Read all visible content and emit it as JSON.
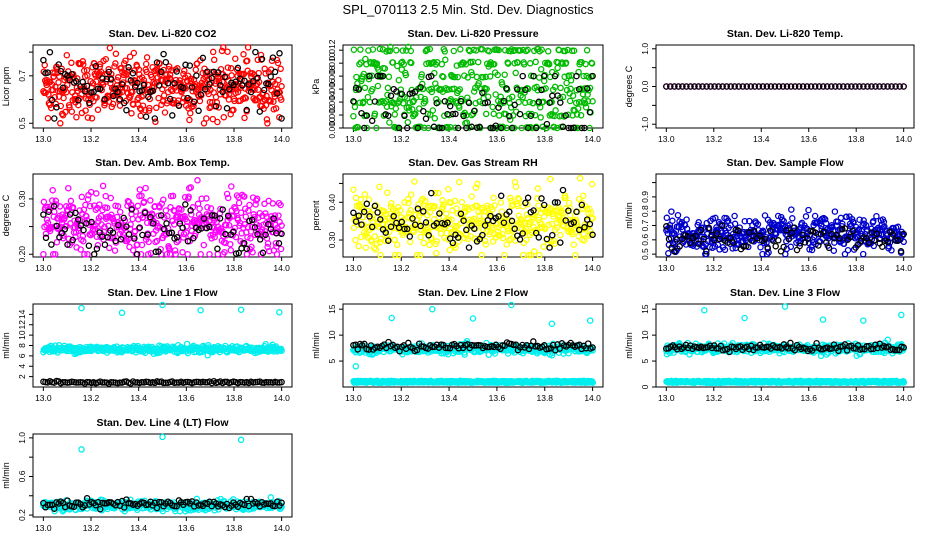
{
  "page": {
    "title": "SPL_070113  2.5 Min. Std. Dev. Diagnostics"
  },
  "chart_data": [
    {
      "type": "scatter",
      "title": "Stan. Dev. Li-820 CO2",
      "xlabel": "",
      "ylabel": "Licor ppm",
      "xlim": [
        13.0,
        14.0
      ],
      "xticks": [
        "13.0",
        "13.2",
        "13.4",
        "13.6",
        "13.8",
        "14.0"
      ],
      "ylim": [
        0.48,
        0.83
      ],
      "yticks": [
        0.5,
        0.6,
        0.7,
        0.8
      ],
      "ytick_labels": [
        "0.5",
        "",
        "0.7",
        ""
      ],
      "series": [
        {
          "name": "primary",
          "color": "#ff0000",
          "n": 520,
          "mean": 0.655,
          "sd": 0.065,
          "min": 0.5,
          "max": 0.82
        },
        {
          "name": "secondary",
          "color": "#000000",
          "n": 110,
          "mean": 0.66,
          "sd": 0.06,
          "min": 0.52,
          "max": 0.8
        }
      ]
    },
    {
      "type": "scatter",
      "title": "Stan. Dev. Li-820 Pressure",
      "xlabel": "",
      "ylabel": "kPa",
      "xlim": [
        13.0,
        14.0
      ],
      "xticks": [
        "13.0",
        "13.2",
        "13.4",
        "13.6",
        "13.8",
        "14.0"
      ],
      "ylim": [
        0.0,
        0.0128
      ],
      "yticks": [
        0.0,
        0.002,
        0.004,
        0.006,
        0.008,
        0.01,
        0.012
      ],
      "ytick_labels": [
        "0.000",
        "0.002",
        "0.004",
        "0.006",
        "0.008",
        "0.010",
        "0.012"
      ],
      "series": [
        {
          "name": "primary",
          "color": "#00bb00",
          "n": 480,
          "levels": [
            0.0,
            0.002,
            0.004,
            0.006,
            0.008,
            0.01,
            0.012
          ],
          "mean": 0.0055,
          "sd": 0.003,
          "min": 0.0,
          "max": 0.0125
        },
        {
          "name": "secondary",
          "color": "#000000",
          "n": 90,
          "levels": [
            0.0,
            0.002,
            0.004,
            0.006,
            0.008
          ],
          "mean": 0.004,
          "sd": 0.003,
          "min": 0.0,
          "max": 0.008
        }
      ]
    },
    {
      "type": "scatter",
      "title": "Stan. Dev. Li-820 Temp.",
      "xlabel": "",
      "ylabel": "degrees C",
      "xlim": [
        13.0,
        14.0
      ],
      "xticks": [
        "13.0",
        "13.2",
        "13.4",
        "13.6",
        "13.8",
        "14.0"
      ],
      "ylim": [
        -1.1,
        1.1
      ],
      "yticks": [
        -1.0,
        -0.5,
        0.0,
        0.5,
        1.0
      ],
      "ytick_labels": [
        "-1.0",
        "",
        "0.0",
        "",
        "1.0"
      ],
      "series": [
        {
          "name": "primary",
          "color": "#ff00ff",
          "n": 60,
          "constant": 0.0
        },
        {
          "name": "secondary",
          "color": "#000000",
          "n": 60,
          "constant": 0.0
        }
      ]
    },
    {
      "type": "scatter",
      "title": "Stan. Dev. Amb. Box Temp.",
      "xlabel": "",
      "ylabel": "degrees C",
      "xlim": [
        13.0,
        14.0
      ],
      "xticks": [
        "13.0",
        "13.2",
        "13.4",
        "13.6",
        "13.8",
        "14.0"
      ],
      "ylim": [
        0.195,
        0.345
      ],
      "yticks": [
        0.2,
        0.25,
        0.3
      ],
      "ytick_labels": [
        "0.20",
        "",
        "0.30"
      ],
      "series": [
        {
          "name": "primary",
          "color": "#ff00ff",
          "n": 460,
          "mean": 0.255,
          "sd": 0.03,
          "min": 0.2,
          "max": 0.34
        },
        {
          "name": "secondary",
          "color": "#000000",
          "n": 90,
          "mean": 0.245,
          "sd": 0.02,
          "min": 0.2,
          "max": 0.29
        }
      ]
    },
    {
      "type": "scatter",
      "title": "Stan. Dev. Gas Stream RH",
      "xlabel": "",
      "ylabel": "percent",
      "xlim": [
        13.0,
        14.0
      ],
      "xticks": [
        "13.0",
        "13.2",
        "13.4",
        "13.6",
        "13.8",
        "14.0"
      ],
      "ylim": [
        0.255,
        0.475
      ],
      "yticks": [
        0.3,
        0.35,
        0.4,
        0.45
      ],
      "ytick_labels": [
        "0.30",
        "",
        "0.40",
        ""
      ],
      "series": [
        {
          "name": "primary",
          "color": "#ffff00",
          "n": 460,
          "mean": 0.345,
          "sd": 0.04,
          "min": 0.26,
          "max": 0.47
        },
        {
          "name": "secondary",
          "color": "#000000",
          "n": 90,
          "mean": 0.345,
          "sd": 0.035,
          "min": 0.28,
          "max": 0.46
        }
      ]
    },
    {
      "type": "scatter",
      "title": "Stan. Dev. Sample Flow",
      "xlabel": "",
      "ylabel": "ml/min",
      "xlim": [
        13.0,
        14.0
      ],
      "xticks": [
        "13.0",
        "13.2",
        "13.4",
        "13.6",
        "13.8",
        "14.0"
      ],
      "ylim": [
        0.48,
        1.06
      ],
      "yticks": [
        0.5,
        0.6,
        0.7,
        0.8,
        0.9,
        1.0
      ],
      "ytick_labels": [
        "0.5",
        "0.6",
        "0.7",
        "0.8",
        "0.9",
        ""
      ],
      "series": [
        {
          "name": "primary",
          "color": "#0000cc",
          "n": 470,
          "mean": 0.64,
          "sd": 0.06,
          "min": 0.5,
          "max": 1.05
        },
        {
          "name": "secondary",
          "color": "#000000",
          "n": 90,
          "mean": 0.61,
          "sd": 0.04,
          "min": 0.52,
          "max": 0.72
        }
      ]
    },
    {
      "type": "scatter",
      "title": "Stan. Dev. Line 1 Flow",
      "xlabel": "",
      "ylabel": "ml/min",
      "xlim": [
        13.0,
        14.0
      ],
      "xticks": [
        "13.0",
        "13.2",
        "13.4",
        "13.6",
        "13.8",
        "14.0"
      ],
      "ylim": [
        0.0,
        16.0
      ],
      "yticks": [
        2,
        4,
        6,
        8,
        10,
        12,
        14
      ],
      "ytick_labels": [
        "2",
        "4",
        "6",
        "8",
        "10",
        "12",
        "14"
      ],
      "series": [
        {
          "name": "primary",
          "color": "#00eeee",
          "n": 420,
          "mean": 7.3,
          "sd": 0.35,
          "min": 5.0,
          "max": 15.5,
          "outliers": [
            [
              13.16,
              15.2
            ],
            [
              13.33,
              14.3
            ],
            [
              13.5,
              15.8
            ],
            [
              13.66,
              14.8
            ],
            [
              13.83,
              14.9
            ],
            [
              13.99,
              14.4
            ]
          ]
        },
        {
          "name": "secondary",
          "color": "#000000",
          "n": 110,
          "mean": 0.9,
          "sd": 0.1,
          "min": 0.6,
          "max": 1.2
        }
      ]
    },
    {
      "type": "scatter",
      "title": "Stan. Dev. Line 2 Flow",
      "xlabel": "",
      "ylabel": "ml/min",
      "xlim": [
        13.0,
        14.0
      ],
      "xticks": [
        "13.0",
        "13.2",
        "13.4",
        "13.6",
        "13.8",
        "14.0"
      ],
      "ylim": [
        0.0,
        16.0
      ],
      "yticks": [
        5,
        10,
        15
      ],
      "ytick_labels": [
        "5",
        "10",
        "15"
      ],
      "series": [
        {
          "name": "primary",
          "color": "#00eeee",
          "n": 420,
          "mean": 7.3,
          "sd": 0.4,
          "min": 5.0,
          "max": 15.5,
          "low_band": 1.0,
          "outliers": [
            [
              13.16,
              13.3
            ],
            [
              13.33,
              15.0
            ],
            [
              13.5,
              13.2
            ],
            [
              13.66,
              15.8
            ],
            [
              13.83,
              12.2
            ],
            [
              13.99,
              12.8
            ],
            [
              13.01,
              4.0
            ]
          ]
        },
        {
          "name": "secondary",
          "color": "#000000",
          "n": 110,
          "mean": 7.8,
          "sd": 0.4,
          "min": 5.0,
          "max": 8.8
        }
      ]
    },
    {
      "type": "scatter",
      "title": "Stan. Dev. Line 3 Flow",
      "xlabel": "",
      "ylabel": "ml/min",
      "xlim": [
        13.0,
        14.0
      ],
      "xticks": [
        "13.0",
        "13.2",
        "13.4",
        "13.6",
        "13.8",
        "14.0"
      ],
      "ylim": [
        0.0,
        16.0
      ],
      "yticks": [
        0,
        5,
        10,
        15
      ],
      "ytick_labels": [
        "0",
        "5",
        "10",
        "15"
      ],
      "series": [
        {
          "name": "primary",
          "color": "#00eeee",
          "n": 420,
          "mean": 7.4,
          "sd": 0.45,
          "min": 5.0,
          "max": 15.5,
          "low_band": 1.0,
          "outliers": [
            [
              13.16,
              14.8
            ],
            [
              13.33,
              13.3
            ],
            [
              13.5,
              15.5
            ],
            [
              13.66,
              13.0
            ],
            [
              13.83,
              12.8
            ],
            [
              13.99,
              13.9
            ]
          ]
        },
        {
          "name": "secondary",
          "color": "#000000",
          "n": 110,
          "mean": 7.6,
          "sd": 0.35,
          "min": 6.0,
          "max": 9.0
        }
      ]
    },
    {
      "type": "scatter",
      "title": "Stan. Dev. Line 4 (LT) Flow",
      "xlabel": "",
      "ylabel": "ml/min",
      "xlim": [
        13.0,
        14.0
      ],
      "xticks": [
        "13.0",
        "13.2",
        "13.4",
        "13.6",
        "13.8",
        "14.0"
      ],
      "ylim": [
        0.18,
        1.04
      ],
      "yticks": [
        0.2,
        0.4,
        0.6,
        0.8,
        1.0
      ],
      "ytick_labels": [
        "0.2",
        "",
        "0.6",
        "",
        "1.0"
      ],
      "series": [
        {
          "name": "primary",
          "color": "#00eeee",
          "n": 420,
          "mean": 0.3,
          "sd": 0.025,
          "min": 0.24,
          "max": 1.03,
          "outliers": [
            [
              13.16,
              0.88
            ],
            [
              13.5,
              1.01
            ],
            [
              13.83,
              0.98
            ]
          ]
        },
        {
          "name": "secondary",
          "color": "#000000",
          "n": 110,
          "mean": 0.31,
          "sd": 0.025,
          "min": 0.25,
          "max": 0.4
        }
      ]
    }
  ]
}
